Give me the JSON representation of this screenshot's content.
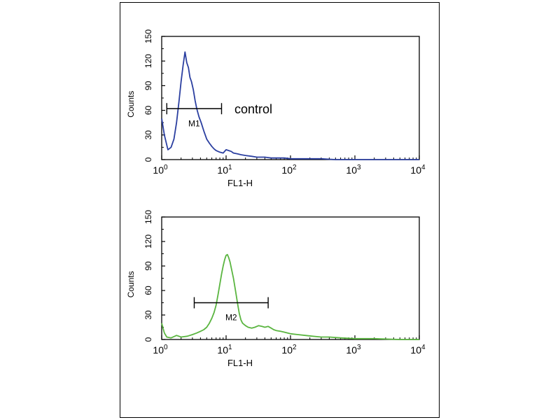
{
  "chart_data": [
    {
      "type": "line",
      "xscale": "log",
      "xlabel": "FL1-H",
      "ylabel": "Counts",
      "xlim": [
        1,
        10000
      ],
      "ylim": [
        0,
        150
      ],
      "x_ticks": [
        {
          "base": "10",
          "exp": "0"
        },
        {
          "base": "10",
          "exp": "1"
        },
        {
          "base": "10",
          "exp": "2"
        },
        {
          "base": "10",
          "exp": "3"
        },
        {
          "base": "10",
          "exp": "4"
        }
      ],
      "y_ticks": [
        "0",
        "30",
        "60",
        "90",
        "120",
        "150"
      ],
      "annotation": "control",
      "marker": {
        "label": "M1",
        "x_range": [
          1.2,
          8.5
        ],
        "y": 62
      },
      "color": "#2b3fa0",
      "series": [
        {
          "x": [
            1,
            1.1,
            1.25,
            1.4,
            1.55,
            1.7,
            1.85,
            2,
            2.15,
            2.3,
            2.45,
            2.6,
            2.75,
            2.9,
            3.1,
            3.3,
            3.5,
            3.8,
            4.1,
            4.5,
            5,
            5.5,
            6,
            6.5,
            7,
            8,
            9,
            10,
            11,
            12,
            13,
            15,
            17,
            20,
            25,
            30,
            40,
            50,
            60,
            80,
            100,
            150,
            200,
            300,
            500,
            1000,
            2000,
            5000,
            10000
          ],
          "y": [
            50,
            30,
            12,
            15,
            25,
            45,
            70,
            95,
            115,
            131,
            118,
            112,
            100,
            95,
            85,
            72,
            62,
            52,
            45,
            35,
            25,
            20,
            16,
            13,
            11,
            9,
            8,
            12,
            11,
            10,
            8,
            7,
            6,
            5,
            4,
            3,
            3,
            2,
            2,
            2,
            1,
            1,
            1,
            1,
            0,
            0,
            0,
            0,
            0
          ]
        }
      ]
    },
    {
      "type": "line",
      "xscale": "log",
      "xlabel": "FL1-H",
      "ylabel": "Counts",
      "xlim": [
        1,
        10000
      ],
      "ylim": [
        0,
        150
      ],
      "x_ticks": [
        {
          "base": "10",
          "exp": "0"
        },
        {
          "base": "10",
          "exp": "1"
        },
        {
          "base": "10",
          "exp": "2"
        },
        {
          "base": "10",
          "exp": "3"
        },
        {
          "base": "10",
          "exp": "4"
        }
      ],
      "y_ticks": [
        "0",
        "30",
        "60",
        "90",
        "120",
        "150"
      ],
      "marker": {
        "label": "M2",
        "x_range": [
          3.2,
          45
        ],
        "y": 45
      },
      "color": "#5ab540",
      "series": [
        {
          "x": [
            1,
            1.1,
            1.2,
            1.4,
            1.7,
            2,
            2.5,
            3,
            3.5,
            4,
            4.5,
            5,
            5.5,
            6,
            6.5,
            7,
            7.5,
            8,
            8.5,
            9,
            9.5,
            10,
            10.5,
            11,
            11.5,
            12,
            13,
            14,
            15,
            16,
            17,
            18,
            20,
            22,
            25,
            28,
            32,
            36,
            40,
            45,
            50,
            55,
            60,
            70,
            80,
            100,
            130,
            170,
            220,
            300,
            400,
            600,
            1000,
            2000,
            5000,
            10000
          ],
          "y": [
            20,
            8,
            3,
            2,
            5,
            3,
            4,
            6,
            8,
            10,
            12,
            15,
            20,
            26,
            33,
            42,
            55,
            68,
            80,
            90,
            98,
            103,
            104,
            100,
            95,
            88,
            75,
            60,
            45,
            32,
            24,
            20,
            17,
            15,
            14,
            15,
            17,
            16,
            15,
            16,
            14,
            12,
            11,
            10,
            9,
            7,
            6,
            5,
            4,
            3,
            3,
            2,
            1,
            1,
            0,
            0
          ]
        }
      ]
    }
  ]
}
